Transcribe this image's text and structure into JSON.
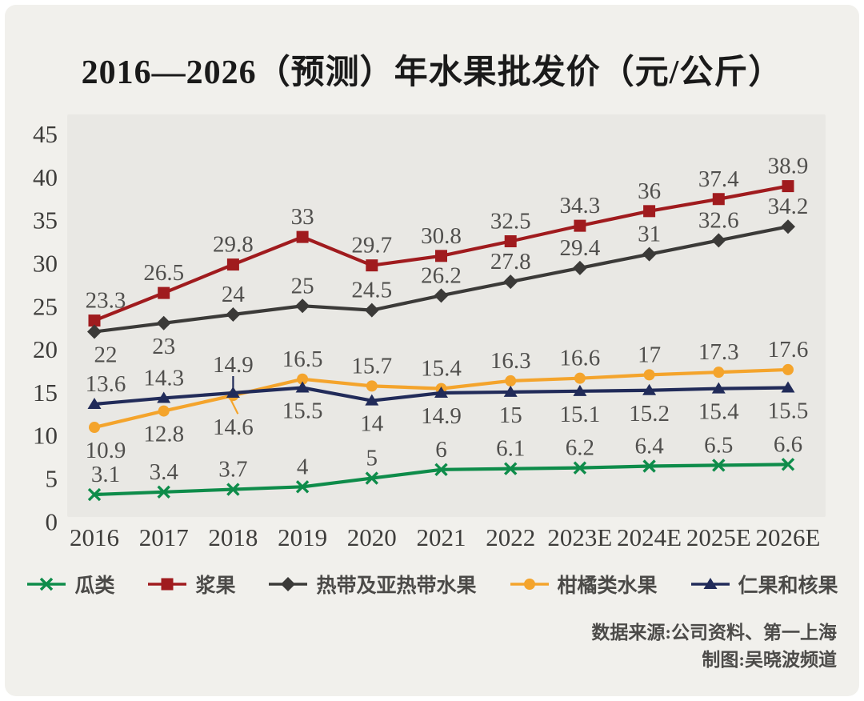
{
  "title": "2016—2026（预测）年水果批发价（元/公斤）",
  "source": {
    "line1": "数据来源:公司资料、第一上海",
    "line2": "制图:吴晓波频道"
  },
  "chart_data": {
    "type": "line",
    "title": "2016—2026（预测）年水果批发价（元/公斤）",
    "xlabel": "",
    "ylabel": "元/公斤",
    "ylim": [
      0,
      45
    ],
    "yticks": [
      45,
      40,
      35,
      30,
      25,
      20,
      15,
      10,
      5,
      0
    ],
    "grid": false,
    "legend_position": "bottom",
    "categories": [
      "2016",
      "2017",
      "2018",
      "2019",
      "2020",
      "2021",
      "2022",
      "2023E",
      "2024E",
      "2025E",
      "2026E"
    ],
    "series": [
      {
        "name": "瓜类",
        "marker": "x",
        "color": "#0e8c4a",
        "values": [
          3.1,
          3.4,
          3.7,
          4,
          5,
          6,
          6.1,
          6.2,
          6.4,
          6.5,
          6.6
        ],
        "label_side": [
          "a",
          "a",
          "a",
          "a",
          "a",
          "a",
          "a",
          "a",
          "a",
          "a",
          "a"
        ]
      },
      {
        "name": "浆果",
        "marker": "square",
        "color": "#a01b1e",
        "values": [
          23.3,
          26.5,
          29.8,
          33,
          29.7,
          30.8,
          32.5,
          34.3,
          36,
          37.4,
          38.9
        ],
        "label_side": [
          "a",
          "a",
          "a",
          "a",
          "a",
          "a",
          "a",
          "a",
          "a",
          "a",
          "a"
        ]
      },
      {
        "name": "热带及亚热带水果",
        "marker": "diamond",
        "color": "#3b3a38",
        "values": [
          22,
          23,
          24,
          25,
          24.5,
          26.2,
          27.8,
          29.4,
          31,
          32.6,
          34.2
        ],
        "label_side": [
          "b",
          "b",
          "a",
          "a",
          "a",
          "a",
          "a",
          "a",
          "a",
          "a",
          "a"
        ]
      },
      {
        "name": "柑橘类水果",
        "marker": "circle",
        "color": "#f4a42c",
        "values": [
          10.9,
          12.8,
          14.6,
          16.5,
          15.7,
          15.4,
          16.3,
          16.6,
          17,
          17.3,
          17.6
        ],
        "label_side": [
          "b",
          "b",
          "b2",
          "a",
          "a",
          "a",
          "a",
          "a",
          "a",
          "a",
          "a"
        ]
      },
      {
        "name": "仁果和核果",
        "marker": "triangle",
        "color": "#212b59",
        "values": [
          13.6,
          14.3,
          14.9,
          15.5,
          14,
          14.9,
          15,
          15.1,
          15.2,
          15.4,
          15.5
        ],
        "label_side": [
          "a",
          "a",
          "a2",
          "b",
          "b",
          "b",
          "b",
          "b",
          "b",
          "b",
          "b"
        ]
      }
    ]
  }
}
